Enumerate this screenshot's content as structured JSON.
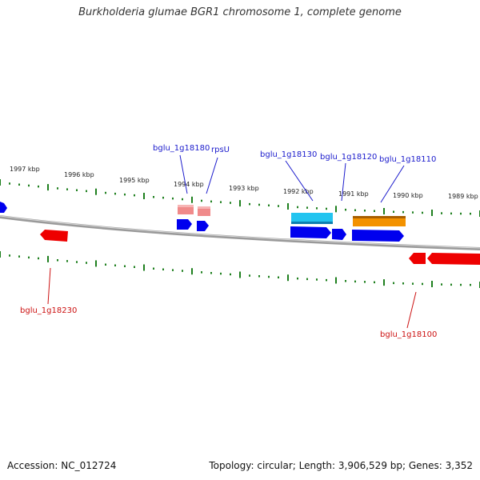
{
  "title": "Burkholderia glumae BGR1 chromosome 1, complete genome",
  "footer": {
    "accession": "Accession: NC_012724",
    "stats": "Topology: circular; Length: 3,906,529 bp; Genes: 3,352"
  },
  "colors": {
    "forward_cds": "#0000ee",
    "reverse_cds": "#ee0000",
    "forward_label": "#1a1acc",
    "reverse_label": "#cc1111",
    "tick": "#1e7f1e",
    "backbone": "#8a8a8a",
    "feature_pink": "#f08a8a",
    "feature_cyan": "#22c4f0",
    "feature_orange": "#f39200"
  },
  "kbp_labels": [
    "1997 kbp",
    "1996 kbp",
    "1995 kbp",
    "1994 kbp",
    "1993 kbp",
    "1992 kbp",
    "1991 kbp",
    "1990 kbp",
    "1989 kbp"
  ],
  "gene_labels": {
    "bglu_1g18180": "bglu_1g18180",
    "rpsU": "rpsU",
    "bglu_1g18130": "bglu_1g18130",
    "bglu_1g18120": "bglu_1g18120",
    "bglu_1g18110": "bglu_1g18110",
    "bglu_1g18230": "bglu_1g18230",
    "bglu_1g18100": "bglu_1g18100"
  }
}
